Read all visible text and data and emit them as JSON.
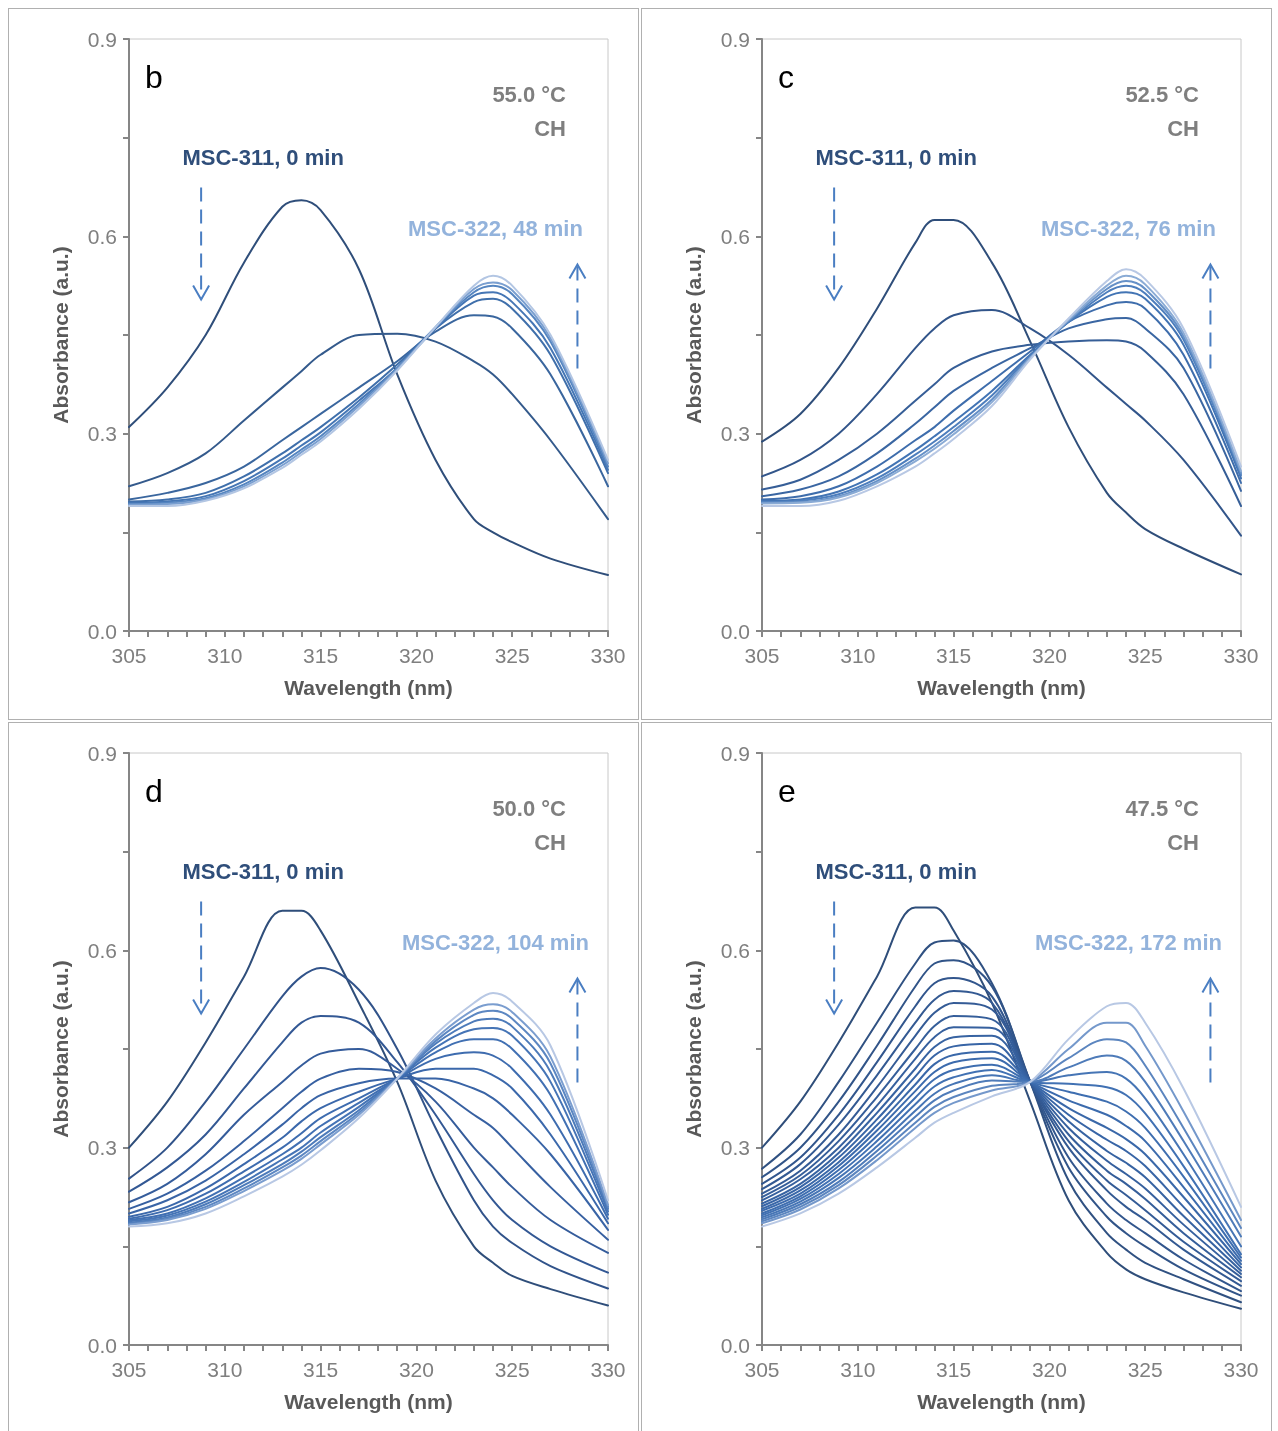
{
  "chart_data": [
    {
      "type": "line",
      "xlabel": "Wavelength (nm)",
      "ylabel": "Absorbance (a.u.)",
      "marker": "none",
      "annotations": [
        "b",
        "55.0 °C",
        "CH",
        "MSC-311, 0 min",
        "MSC-322, 48 min"
      ],
      "xlim": [
        305,
        330
      ],
      "ylim": [
        0,
        0.9
      ],
      "xticks": [
        305,
        {
          "value": 306,
          "label": null
        },
        {
          "value": 307,
          "label": null
        },
        {
          "value": 308,
          "label": null
        },
        {
          "value": 309,
          "label": null
        },
        310,
        {
          "value": 311,
          "label": null
        },
        {
          "value": 312,
          "label": null
        },
        {
          "value": 313,
          "label": null
        },
        {
          "value": 314,
          "label": null
        },
        315,
        {
          "value": 316,
          "label": null
        },
        {
          "value": 317,
          "label": null
        },
        {
          "value": 318,
          "label": null
        },
        {
          "value": 319,
          "label": null
        },
        320,
        {
          "value": 321,
          "label": null
        },
        {
          "value": 322,
          "label": null
        },
        {
          "value": 323,
          "label": null
        },
        {
          "value": 324,
          "label": null
        },
        325,
        {
          "value": 326,
          "label": null
        },
        {
          "value": 327,
          "label": null
        },
        {
          "value": 328,
          "label": null
        },
        {
          "value": 329,
          "label": null
        },
        330
      ],
      "yticks": [
        {
          "value": 0,
          "label": "0.0"
        },
        {
          "value": 0.15,
          "label": null
        },
        0.3,
        {
          "value": 0.45,
          "label": null
        },
        0.6,
        {
          "value": 0.75,
          "label": null
        },
        0.9
      ],
      "x": [
        305,
        307,
        309,
        311,
        313,
        314,
        315,
        317,
        319,
        321,
        323,
        324,
        325,
        327,
        330
      ],
      "series": [
        {
          "color": "#2f4e7a",
          "values": [
            0.31,
            0.37,
            0.45,
            0.56,
            0.645,
            0.655,
            0.64,
            0.55,
            0.39,
            0.26,
            0.17,
            0.15,
            0.135,
            0.11,
            0.085
          ]
        },
        {
          "color": "#345a8c",
          "values": [
            0.22,
            0.24,
            0.27,
            0.32,
            0.37,
            0.395,
            0.42,
            0.45,
            0.452,
            0.44,
            0.41,
            0.39,
            0.36,
            0.29,
            0.17
          ]
        },
        {
          "color": "#3a669e",
          "values": [
            0.2,
            0.21,
            0.225,
            0.25,
            0.29,
            0.31,
            0.33,
            0.37,
            0.41,
            0.455,
            0.48,
            0.478,
            0.46,
            0.39,
            0.22
          ]
        },
        {
          "color": "#3f6fab",
          "values": [
            0.197,
            0.2,
            0.21,
            0.235,
            0.27,
            0.29,
            0.31,
            0.355,
            0.405,
            0.46,
            0.5,
            0.505,
            0.49,
            0.42,
            0.24
          ]
        },
        {
          "color": "#4576b5",
          "values": [
            0.195,
            0.197,
            0.205,
            0.228,
            0.262,
            0.282,
            0.302,
            0.35,
            0.4,
            0.46,
            0.51,
            0.515,
            0.5,
            0.43,
            0.245
          ]
        },
        {
          "color": "#5585c0",
          "values": [
            0.193,
            0.195,
            0.202,
            0.223,
            0.256,
            0.276,
            0.296,
            0.345,
            0.4,
            0.462,
            0.515,
            0.525,
            0.512,
            0.44,
            0.25
          ]
        },
        {
          "color": "#7a9fd0",
          "values": [
            0.192,
            0.193,
            0.2,
            0.22,
            0.252,
            0.272,
            0.292,
            0.342,
            0.398,
            0.462,
            0.52,
            0.53,
            0.518,
            0.445,
            0.255
          ]
        },
        {
          "color": "#b3c6e3",
          "values": [
            0.19,
            0.19,
            0.198,
            0.217,
            0.248,
            0.268,
            0.288,
            0.338,
            0.396,
            0.462,
            0.525,
            0.54,
            0.525,
            0.45,
            0.26
          ]
        }
      ]
    },
    {
      "type": "line",
      "xlabel": "Wavelength (nm)",
      "ylabel": "Absorbance (a.u.)",
      "marker": "none",
      "annotations": [
        "c",
        "52.5 °C",
        "CH",
        "MSC-311, 0 min",
        "MSC-322, 76 min"
      ],
      "xlim": [
        305,
        330
      ],
      "ylim": [
        0,
        0.9
      ],
      "xticks": [
        305,
        {
          "value": 306,
          "label": null
        },
        {
          "value": 307,
          "label": null
        },
        {
          "value": 308,
          "label": null
        },
        {
          "value": 309,
          "label": null
        },
        310,
        {
          "value": 311,
          "label": null
        },
        {
          "value": 312,
          "label": null
        },
        {
          "value": 313,
          "label": null
        },
        {
          "value": 314,
          "label": null
        },
        315,
        {
          "value": 316,
          "label": null
        },
        {
          "value": 317,
          "label": null
        },
        {
          "value": 318,
          "label": null
        },
        {
          "value": 319,
          "label": null
        },
        320,
        {
          "value": 321,
          "label": null
        },
        {
          "value": 322,
          "label": null
        },
        {
          "value": 323,
          "label": null
        },
        {
          "value": 324,
          "label": null
        },
        325,
        {
          "value": 326,
          "label": null
        },
        {
          "value": 327,
          "label": null
        },
        {
          "value": 328,
          "label": null
        },
        {
          "value": 329,
          "label": null
        },
        330
      ],
      "yticks": [
        {
          "value": 0,
          "label": "0.0"
        },
        {
          "value": 0.15,
          "label": null
        },
        0.3,
        {
          "value": 0.45,
          "label": null
        },
        0.6,
        {
          "value": 0.75,
          "label": null
        },
        0.9
      ],
      "x": [
        305,
        307,
        309,
        311,
        313,
        314,
        315,
        317,
        319,
        321,
        323,
        324,
        325,
        327,
        330
      ],
      "series": [
        {
          "color": "#2f4e7a",
          "values": [
            0.288,
            0.33,
            0.4,
            0.49,
            0.59,
            0.625,
            0.625,
            0.56,
            0.44,
            0.31,
            0.21,
            0.18,
            0.155,
            0.125,
            0.086
          ]
        },
        {
          "color": "#32558a",
          "values": [
            0.235,
            0.26,
            0.3,
            0.36,
            0.43,
            0.46,
            0.48,
            0.488,
            0.46,
            0.42,
            0.37,
            0.345,
            0.32,
            0.26,
            0.145
          ]
        },
        {
          "color": "#365e97",
          "values": [
            0.215,
            0.23,
            0.26,
            0.3,
            0.35,
            0.375,
            0.4,
            0.425,
            0.435,
            0.44,
            0.442,
            0.44,
            0.425,
            0.36,
            0.19
          ]
        },
        {
          "color": "#3a66a2",
          "values": [
            0.205,
            0.215,
            0.235,
            0.27,
            0.315,
            0.34,
            0.365,
            0.4,
            0.43,
            0.46,
            0.474,
            0.476,
            0.46,
            0.4,
            0.213
          ]
        },
        {
          "color": "#3e6dac",
          "values": [
            0.2,
            0.205,
            0.22,
            0.25,
            0.29,
            0.31,
            0.335,
            0.38,
            0.425,
            0.47,
            0.495,
            0.5,
            0.49,
            0.42,
            0.225
          ]
        },
        {
          "color": "#4274b4",
          "values": [
            0.198,
            0.2,
            0.212,
            0.238,
            0.275,
            0.296,
            0.318,
            0.365,
            0.42,
            0.47,
            0.508,
            0.515,
            0.505,
            0.435,
            0.232
          ]
        },
        {
          "color": "#4d7ebd",
          "values": [
            0.196,
            0.198,
            0.208,
            0.232,
            0.268,
            0.288,
            0.31,
            0.358,
            0.418,
            0.47,
            0.515,
            0.525,
            0.513,
            0.443,
            0.237
          ]
        },
        {
          "color": "#6590c7",
          "values": [
            0.195,
            0.196,
            0.205,
            0.228,
            0.262,
            0.282,
            0.304,
            0.352,
            0.416,
            0.472,
            0.52,
            0.532,
            0.52,
            0.448,
            0.24
          ]
        },
        {
          "color": "#8aabd5",
          "values": [
            0.194,
            0.195,
            0.203,
            0.225,
            0.258,
            0.277,
            0.299,
            0.348,
            0.415,
            0.473,
            0.525,
            0.54,
            0.527,
            0.453,
            0.243
          ]
        },
        {
          "color": "#b8c8e4",
          "values": [
            0.19,
            0.19,
            0.198,
            0.22,
            0.25,
            0.27,
            0.292,
            0.342,
            0.413,
            0.475,
            0.532,
            0.55,
            0.535,
            0.46,
            0.25
          ]
        }
      ]
    },
    {
      "type": "line",
      "xlabel": "Wavelength (nm)",
      "ylabel": "Absorbance (a.u.)",
      "marker": "none",
      "annotations": [
        "d",
        "50.0 °C",
        "CH",
        "MSC-311, 0 min",
        "MSC-322, 104 min"
      ],
      "xlim": [
        305,
        330
      ],
      "ylim": [
        0,
        0.9
      ],
      "xticks": [
        305,
        {
          "value": 306,
          "label": null
        },
        {
          "value": 307,
          "label": null
        },
        {
          "value": 308,
          "label": null
        },
        {
          "value": 309,
          "label": null
        },
        310,
        {
          "value": 311,
          "label": null
        },
        {
          "value": 312,
          "label": null
        },
        {
          "value": 313,
          "label": null
        },
        {
          "value": 314,
          "label": null
        },
        315,
        {
          "value": 316,
          "label": null
        },
        {
          "value": 317,
          "label": null
        },
        {
          "value": 318,
          "label": null
        },
        {
          "value": 319,
          "label": null
        },
        320,
        {
          "value": 321,
          "label": null
        },
        {
          "value": 322,
          "label": null
        },
        {
          "value": 323,
          "label": null
        },
        {
          "value": 324,
          "label": null
        },
        325,
        {
          "value": 326,
          "label": null
        },
        {
          "value": 327,
          "label": null
        },
        {
          "value": 328,
          "label": null
        },
        {
          "value": 329,
          "label": null
        },
        330
      ],
      "yticks": [
        {
          "value": 0,
          "label": "0.0"
        },
        {
          "value": 0.15,
          "label": null
        },
        0.3,
        {
          "value": 0.45,
          "label": null
        },
        0.6,
        {
          "value": 0.75,
          "label": null
        },
        0.9
      ],
      "x": [
        305,
        307,
        309,
        311,
        313,
        314,
        315,
        317,
        319,
        321,
        323,
        324,
        325,
        327,
        330
      ],
      "series": [
        {
          "color": "#2f4e7a",
          "values": [
            0.3,
            0.37,
            0.46,
            0.56,
            0.66,
            0.66,
            0.63,
            0.52,
            0.4,
            0.25,
            0.15,
            0.125,
            0.105,
            0.085,
            0.06
          ]
        },
        {
          "color": "#31538a",
          "values": [
            0.253,
            0.3,
            0.37,
            0.45,
            0.53,
            0.56,
            0.573,
            0.54,
            0.45,
            0.33,
            0.22,
            0.18,
            0.155,
            0.12,
            0.086
          ]
        },
        {
          "color": "#335894",
          "values": [
            0.233,
            0.27,
            0.32,
            0.39,
            0.46,
            0.49,
            0.5,
            0.49,
            0.43,
            0.35,
            0.26,
            0.22,
            0.19,
            0.15,
            0.11
          ]
        },
        {
          "color": "#355c9b",
          "values": [
            0.217,
            0.245,
            0.29,
            0.35,
            0.4,
            0.425,
            0.443,
            0.45,
            0.42,
            0.37,
            0.3,
            0.27,
            0.24,
            0.19,
            0.14
          ]
        },
        {
          "color": "#3760a1",
          "values": [
            0.207,
            0.23,
            0.265,
            0.31,
            0.36,
            0.385,
            0.405,
            0.42,
            0.415,
            0.39,
            0.35,
            0.33,
            0.3,
            0.24,
            0.16
          ]
        },
        {
          "color": "#3964a6",
          "values": [
            0.2,
            0.22,
            0.25,
            0.29,
            0.335,
            0.36,
            0.38,
            0.398,
            0.405,
            0.405,
            0.39,
            0.375,
            0.35,
            0.29,
            0.175
          ]
        },
        {
          "color": "#3b68ab",
          "values": [
            0.195,
            0.21,
            0.238,
            0.275,
            0.315,
            0.34,
            0.36,
            0.385,
            0.405,
            0.42,
            0.42,
            0.41,
            0.39,
            0.32,
            0.185
          ]
        },
        {
          "color": "#3e6caf",
          "values": [
            0.192,
            0.205,
            0.23,
            0.264,
            0.3,
            0.322,
            0.345,
            0.375,
            0.405,
            0.435,
            0.445,
            0.44,
            0.42,
            0.35,
            0.192
          ]
        },
        {
          "color": "#4170b3",
          "values": [
            0.19,
            0.2,
            0.223,
            0.255,
            0.29,
            0.31,
            0.333,
            0.368,
            0.405,
            0.445,
            0.465,
            0.465,
            0.45,
            0.38,
            0.198
          ]
        },
        {
          "color": "#4574b6",
          "values": [
            0.188,
            0.197,
            0.218,
            0.248,
            0.282,
            0.3,
            0.323,
            0.362,
            0.405,
            0.452,
            0.48,
            0.482,
            0.47,
            0.4,
            0.203
          ]
        },
        {
          "color": "#4d7bba",
          "values": [
            0.186,
            0.194,
            0.214,
            0.243,
            0.275,
            0.294,
            0.316,
            0.357,
            0.405,
            0.458,
            0.492,
            0.496,
            0.484,
            0.415,
            0.207
          ]
        },
        {
          "color": "#5c87c2",
          "values": [
            0.184,
            0.192,
            0.21,
            0.238,
            0.27,
            0.288,
            0.31,
            0.353,
            0.405,
            0.462,
            0.502,
            0.508,
            0.496,
            0.428,
            0.21
          ]
        },
        {
          "color": "#7a9dcf",
          "values": [
            0.183,
            0.19,
            0.207,
            0.234,
            0.265,
            0.283,
            0.305,
            0.35,
            0.405,
            0.466,
            0.51,
            0.518,
            0.506,
            0.438,
            0.213
          ]
        },
        {
          "color": "#b8c8e4",
          "values": [
            0.18,
            0.185,
            0.2,
            0.226,
            0.256,
            0.274,
            0.296,
            0.345,
            0.405,
            0.472,
            0.52,
            0.535,
            0.522,
            0.455,
            0.22
          ]
        }
      ]
    },
    {
      "type": "line",
      "xlabel": "Wavelength (nm)",
      "ylabel": "Absorbance (a.u.)",
      "marker": "none",
      "annotations": [
        "e",
        "47.5 °C",
        "CH",
        "MSC-311, 0 min",
        "MSC-322, 172 min"
      ],
      "xlim": [
        305,
        330
      ],
      "ylim": [
        0,
        0.9
      ],
      "xticks": [
        305,
        {
          "value": 306,
          "label": null
        },
        {
          "value": 307,
          "label": null
        },
        {
          "value": 308,
          "label": null
        },
        {
          "value": 309,
          "label": null
        },
        310,
        {
          "value": 311,
          "label": null
        },
        {
          "value": 312,
          "label": null
        },
        {
          "value": 313,
          "label": null
        },
        {
          "value": 314,
          "label": null
        },
        315,
        {
          "value": 316,
          "label": null
        },
        {
          "value": 317,
          "label": null
        },
        {
          "value": 318,
          "label": null
        },
        {
          "value": 319,
          "label": null
        },
        320,
        {
          "value": 321,
          "label": null
        },
        {
          "value": 322,
          "label": null
        },
        {
          "value": 323,
          "label": null
        },
        {
          "value": 324,
          "label": null
        },
        325,
        {
          "value": 326,
          "label": null
        },
        {
          "value": 327,
          "label": null
        },
        {
          "value": 328,
          "label": null
        },
        {
          "value": 329,
          "label": null
        },
        330
      ],
      "yticks": [
        {
          "value": 0,
          "label": "0.0"
        },
        {
          "value": 0.15,
          "label": null
        },
        0.3,
        {
          "value": 0.45,
          "label": null
        },
        0.6,
        {
          "value": 0.75,
          "label": null
        },
        0.9
      ],
      "x": [
        305,
        307,
        309,
        311,
        313,
        314,
        315,
        317,
        319,
        321,
        323,
        324,
        325,
        327,
        330
      ],
      "series": [
        {
          "color": "#2f4e7a",
          "values": [
            0.3,
            0.37,
            0.46,
            0.56,
            0.665,
            0.665,
            0.63,
            0.52,
            0.37,
            0.22,
            0.14,
            0.115,
            0.1,
            0.08,
            0.055
          ]
        },
        {
          "color": "#305182",
          "values": [
            0.268,
            0.32,
            0.4,
            0.49,
            0.58,
            0.612,
            0.615,
            0.55,
            0.4,
            0.25,
            0.17,
            0.145,
            0.125,
            0.1,
            0.065
          ]
        },
        {
          "color": "#315488",
          "values": [
            0.255,
            0.3,
            0.37,
            0.455,
            0.545,
            0.58,
            0.585,
            0.545,
            0.4,
            0.27,
            0.195,
            0.17,
            0.15,
            0.115,
            0.075
          ]
        },
        {
          "color": "#32568d",
          "values": [
            0.245,
            0.285,
            0.35,
            0.43,
            0.515,
            0.55,
            0.558,
            0.53,
            0.4,
            0.285,
            0.215,
            0.19,
            0.17,
            0.13,
            0.082
          ]
        },
        {
          "color": "#335992",
          "values": [
            0.237,
            0.275,
            0.335,
            0.41,
            0.49,
            0.525,
            0.538,
            0.52,
            0.4,
            0.3,
            0.235,
            0.21,
            0.19,
            0.145,
            0.09
          ]
        },
        {
          "color": "#345b96",
          "values": [
            0.23,
            0.265,
            0.32,
            0.392,
            0.47,
            0.505,
            0.52,
            0.51,
            0.4,
            0.31,
            0.25,
            0.228,
            0.205,
            0.157,
            0.097
          ]
        },
        {
          "color": "#355e9a",
          "values": [
            0.225,
            0.258,
            0.31,
            0.377,
            0.45,
            0.485,
            0.5,
            0.495,
            0.4,
            0.32,
            0.265,
            0.245,
            0.222,
            0.17,
            0.103
          ]
        },
        {
          "color": "#36609e",
          "values": [
            0.22,
            0.252,
            0.3,
            0.364,
            0.435,
            0.468,
            0.483,
            0.482,
            0.4,
            0.33,
            0.28,
            0.26,
            0.238,
            0.183,
            0.108
          ]
        },
        {
          "color": "#3763a2",
          "values": [
            0.215,
            0.245,
            0.292,
            0.353,
            0.42,
            0.453,
            0.468,
            0.47,
            0.4,
            0.34,
            0.295,
            0.277,
            0.255,
            0.196,
            0.113
          ]
        },
        {
          "color": "#3865a6",
          "values": [
            0.211,
            0.24,
            0.285,
            0.343,
            0.408,
            0.44,
            0.454,
            0.458,
            0.4,
            0.35,
            0.312,
            0.295,
            0.272,
            0.21,
            0.118
          ]
        },
        {
          "color": "#3a68a9",
          "values": [
            0.207,
            0.235,
            0.278,
            0.334,
            0.396,
            0.427,
            0.441,
            0.446,
            0.4,
            0.36,
            0.33,
            0.313,
            0.29,
            0.225,
            0.123
          ]
        },
        {
          "color": "#3c6bad",
          "values": [
            0.204,
            0.23,
            0.272,
            0.326,
            0.386,
            0.415,
            0.43,
            0.436,
            0.4,
            0.372,
            0.35,
            0.333,
            0.31,
            0.24,
            0.128
          ]
        },
        {
          "color": "#3e6eb0",
          "values": [
            0.2,
            0.226,
            0.266,
            0.318,
            0.376,
            0.404,
            0.418,
            0.426,
            0.4,
            0.385,
            0.37,
            0.355,
            0.33,
            0.256,
            0.133
          ]
        },
        {
          "color": "#4171b3",
          "values": [
            0.197,
            0.222,
            0.26,
            0.31,
            0.366,
            0.393,
            0.407,
            0.418,
            0.4,
            0.397,
            0.392,
            0.38,
            0.352,
            0.272,
            0.138
          ]
        },
        {
          "color": "#4675b5",
          "values": [
            0.194,
            0.218,
            0.254,
            0.302,
            0.356,
            0.382,
            0.397,
            0.41,
            0.4,
            0.41,
            0.415,
            0.405,
            0.375,
            0.29,
            0.15
          ]
        },
        {
          "color": "#4e7bb9",
          "values": [
            0.191,
            0.214,
            0.248,
            0.295,
            0.347,
            0.372,
            0.387,
            0.402,
            0.4,
            0.422,
            0.44,
            0.432,
            0.4,
            0.31,
            0.165
          ]
        },
        {
          "color": "#5b85bf",
          "values": [
            0.188,
            0.21,
            0.243,
            0.288,
            0.338,
            0.362,
            0.377,
            0.394,
            0.4,
            0.436,
            0.465,
            0.46,
            0.425,
            0.33,
            0.178
          ]
        },
        {
          "color": "#7498cb",
          "values": [
            0.185,
            0.206,
            0.238,
            0.281,
            0.33,
            0.353,
            0.368,
            0.387,
            0.4,
            0.45,
            0.49,
            0.49,
            0.455,
            0.355,
            0.19
          ]
        },
        {
          "color": "#b8c8e4",
          "values": [
            0.18,
            0.2,
            0.23,
            0.27,
            0.315,
            0.338,
            0.353,
            0.378,
            0.4,
            0.465,
            0.515,
            0.52,
            0.49,
            0.39,
            0.21
          ]
        }
      ]
    }
  ]
}
